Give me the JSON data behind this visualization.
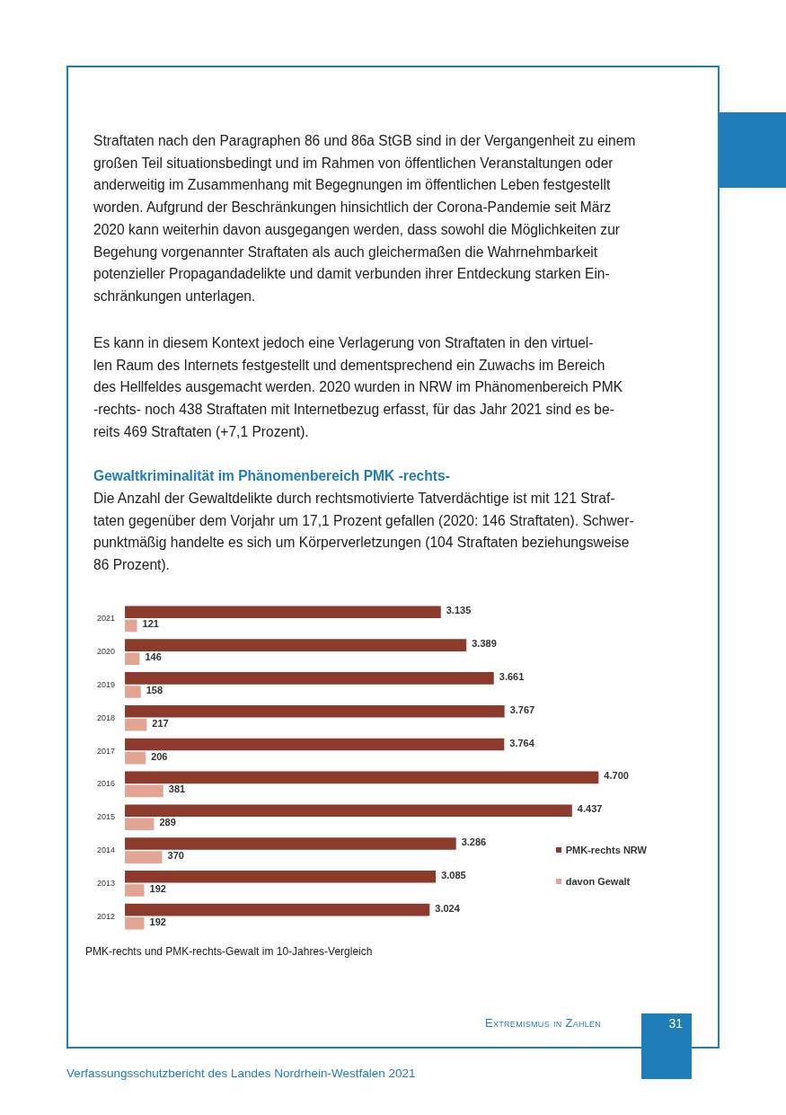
{
  "chart_data": {
    "type": "bar",
    "orientation": "horizontal",
    "title": "PMK-rechts und PMK-rechts-Gewalt im 10-Jahres-Vergleich",
    "categories": [
      "2021",
      "2020",
      "2019",
      "2018",
      "2017",
      "2016",
      "2015",
      "2014",
      "2013",
      "2012"
    ],
    "series": [
      {
        "name": "PMK-rechts NRW",
        "color": "#8b3a2b",
        "values": [
          3135,
          3389,
          3661,
          3767,
          3764,
          4700,
          4437,
          3286,
          3085,
          3024
        ],
        "value_labels": [
          "3.135",
          "3.389",
          "3.661",
          "3.767",
          "3.764",
          "4.700",
          "4.437",
          "3.286",
          "3.085",
          "3.024"
        ]
      },
      {
        "name": "davon Gewalt",
        "color": "#e2a493",
        "values": [
          121,
          146,
          158,
          217,
          206,
          381,
          289,
          370,
          192,
          192
        ],
        "value_labels": [
          "121",
          "146",
          "158",
          "217",
          "206",
          "381",
          "289",
          "370",
          "192",
          "192"
        ]
      }
    ],
    "legend": "bottom right",
    "grid": false,
    "annotations": [
      "Straftaten nach den Paragraphen 86 und 86a StGB sind in der Vergangenheit zu einem\ngroßen Teil situationsbedingt und im Rahmen von öffentlichen Veranstaltungen oder\nanderweitig im Zusammenhang mit Begegnungen im öffentlichen Leben festgestellt\nworden. Aufgrund der Beschränkungen hinsichtlich der Corona-Pandemie seit März\n2020 kann weiterhin davon ausgegangen werden, dass sowohl die Möglichkeiten zur\nBegehung vorgenannter Straftaten als auch gleichermaßen die Wahrnehmbarkeit\npotenzieller Propagandadelikte und damit verbunden ihrer Entdeckung starken Ein-\nschränkungen unterlagen.",
      "Es kann in diesem Kontext jedoch eine Verlagerung von Straftaten in den virtuel-\nlen Raum des Internets festgestellt und dementsprechend ein Zuwachs im Bereich\ndes Hellfeldes ausgemacht werden. 2020 wurden in NRW im Phänomenbereich PMK\n-rechts- noch 438 Straftaten mit Internetbezug erfasst, für das Jahr 2021 sind es be-\nreits 469 Straftaten (+7,1 Prozent).",
      "Gewaltkriminalität im Phänomenbereich PMK -rechts-",
      "Die Anzahl der Gewaltdelikte durch rechtsmotivierte Tatverdächtige ist mit 121 Straf-\ntaten gegenüber dem Vorjahr um 17,1 Prozent gefallen (2020: 146 Straftaten). Schwer-\npunktmäßig handelte es sich um Körperverletzungen (104 Straftaten beziehungsweise\n86 Prozent).",
      "Extremismus in Zahlen",
      "31",
      "Verfassungsschutzbericht des Landes Nordrhein-Westfalen 2021"
    ]
  }
}
